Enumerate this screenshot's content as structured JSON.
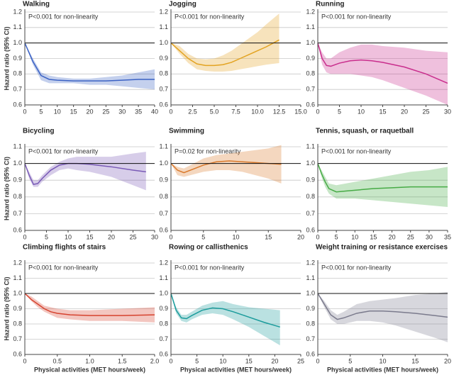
{
  "chart_data": [
    {
      "type": "line",
      "title": "Walking",
      "annotation": "P<0.001 for non-linearity",
      "ylabel": "Hazard ratio (95% CI)",
      "xlim": [
        0,
        40
      ],
      "xticks": [
        0,
        5,
        10,
        15,
        20,
        25,
        30,
        35,
        40
      ],
      "ylim": [
        0.6,
        1.2
      ],
      "yticks": [
        0.6,
        0.7,
        0.8,
        0.9,
        {
          "value": 1,
          "label": "1.0"
        },
        1.1,
        1.2
      ],
      "grid": true,
      "reference": 1,
      "series": [
        {
          "color": "#3b62c4",
          "x": [
            0,
            2.5,
            5,
            7.5,
            10,
            15,
            20,
            25,
            30,
            35,
            40
          ],
          "values": [
            1,
            0.88,
            0.79,
            0.765,
            0.76,
            0.755,
            0.755,
            0.755,
            0.76,
            0.765,
            0.765
          ],
          "lower": [
            1,
            0.86,
            0.76,
            0.74,
            0.74,
            0.74,
            0.73,
            0.73,
            0.72,
            0.71,
            0.7
          ],
          "upper": [
            1,
            0.9,
            0.81,
            0.79,
            0.78,
            0.77,
            0.77,
            0.78,
            0.79,
            0.81,
            0.83
          ]
        }
      ]
    },
    {
      "type": "line",
      "title": "Jogging",
      "annotation": "P<0.001 for non-linearity",
      "xlim": [
        0,
        15
      ],
      "xticks": [
        0,
        2.5,
        {
          "value": 5,
          "label": "5.0"
        },
        7.5,
        {
          "value": 10,
          "label": "10.0"
        },
        12.5,
        {
          "value": 15,
          "label": "15.0"
        }
      ],
      "ylim": [
        0.6,
        1.2
      ],
      "yticks": [
        0.6,
        0.7,
        0.8,
        0.9,
        {
          "value": 1,
          "label": "1.0"
        },
        1.1,
        1.2
      ],
      "grid": true,
      "reference": 1,
      "series": [
        {
          "color": "#e3a321",
          "x": [
            0,
            1,
            2,
            3,
            4,
            5,
            6,
            7,
            8,
            9,
            10,
            11,
            12.5
          ],
          "values": [
            1,
            0.95,
            0.9,
            0.865,
            0.855,
            0.855,
            0.86,
            0.875,
            0.9,
            0.925,
            0.95,
            0.975,
            1.02
          ],
          "lower": [
            1,
            0.93,
            0.87,
            0.83,
            0.82,
            0.815,
            0.815,
            0.82,
            0.83,
            0.84,
            0.85,
            0.86,
            0.87
          ],
          "upper": [
            1,
            0.98,
            0.93,
            0.9,
            0.895,
            0.9,
            0.92,
            0.95,
            0.99,
            1.03,
            1.07,
            1.12,
            1.19
          ]
        }
      ]
    },
    {
      "type": "line",
      "title": "Running",
      "annotation": "P<0.001 for non-linearity",
      "xlim": [
        0,
        30
      ],
      "xticks": [
        0,
        5,
        10,
        15,
        20,
        25,
        30
      ],
      "ylim": [
        0.6,
        1.2
      ],
      "yticks": [
        0.6,
        0.7,
        0.8,
        0.9,
        {
          "value": 1,
          "label": "1.0"
        },
        1.1,
        1.2
      ],
      "grid": true,
      "reference": 1,
      "series": [
        {
          "color": "#c92e8d",
          "x": [
            0,
            1,
            2,
            3,
            5,
            7.5,
            10,
            12.5,
            15,
            20,
            25,
            30
          ],
          "values": [
            1,
            0.9,
            0.855,
            0.85,
            0.87,
            0.885,
            0.89,
            0.885,
            0.875,
            0.845,
            0.8,
            0.74
          ],
          "lower": [
            1,
            0.86,
            0.81,
            0.8,
            0.8,
            0.8,
            0.79,
            0.78,
            0.76,
            0.71,
            0.66,
            0.6
          ],
          "upper": [
            1,
            0.94,
            0.9,
            0.9,
            0.94,
            0.97,
            0.99,
            0.99,
            0.98,
            0.97,
            0.95,
            0.94
          ]
        }
      ]
    },
    {
      "type": "line",
      "title": "Bicycling",
      "annotation": "P<0.001 for non-linearity",
      "ylabel": "Hazard ratio (95% CI)",
      "xlim": [
        0,
        30
      ],
      "xticks": [
        0,
        5,
        10,
        15,
        20,
        25,
        30
      ],
      "ylim": [
        0.6,
        1.1
      ],
      "yticks": [
        0.6,
        0.7,
        0.8,
        0.9,
        {
          "value": 1,
          "label": "1.0"
        },
        1.1
      ],
      "grid": true,
      "reference": 1,
      "series": [
        {
          "color": "#7a5bb7",
          "x": [
            0,
            1,
            2,
            3,
            4,
            6,
            8,
            10,
            12,
            15,
            20,
            25,
            28
          ],
          "values": [
            1,
            0.93,
            0.875,
            0.88,
            0.91,
            0.96,
            0.99,
            1,
            1,
            0.995,
            0.98,
            0.96,
            0.95
          ],
          "lower": [
            1,
            0.91,
            0.86,
            0.86,
            0.89,
            0.93,
            0.96,
            0.97,
            0.96,
            0.95,
            0.92,
            0.87,
            0.84
          ],
          "upper": [
            1,
            0.95,
            0.9,
            0.9,
            0.93,
            0.98,
            1.01,
            1.03,
            1.04,
            1.04,
            1.04,
            1.06,
            1.07
          ]
        }
      ]
    },
    {
      "type": "line",
      "title": "Swimming",
      "annotation": "P=0.02 for non-linearity",
      "xlim": [
        0,
        20
      ],
      "xticks": [
        0,
        5,
        10,
        15,
        20
      ],
      "ylim": [
        0.6,
        1.1
      ],
      "yticks": [
        0.6,
        0.7,
        0.8,
        0.9,
        {
          "value": 1,
          "label": "1.0"
        },
        1.1
      ],
      "grid": true,
      "reference": 1,
      "series": [
        {
          "color": "#d9792b",
          "x": [
            0,
            1,
            2,
            3,
            5,
            7,
            9,
            11,
            13,
            15,
            17
          ],
          "values": [
            1,
            0.96,
            0.945,
            0.96,
            0.99,
            1.01,
            1.015,
            1.01,
            1.005,
            1,
            0.995
          ],
          "lower": [
            1,
            0.93,
            0.92,
            0.93,
            0.95,
            0.96,
            0.96,
            0.95,
            0.93,
            0.91,
            0.88
          ],
          "upper": [
            1,
            0.98,
            0.97,
            0.99,
            1.03,
            1.05,
            1.06,
            1.07,
            1.08,
            1.09,
            1.11
          ]
        }
      ]
    },
    {
      "type": "line",
      "title": "Tennis, squash, or raquetball",
      "annotation": "P<0.001 for non-linearity",
      "xlim": [
        0,
        35
      ],
      "xticks": [
        0,
        5,
        10,
        15,
        20,
        25,
        30,
        35
      ],
      "ylim": [
        0.6,
        1.1
      ],
      "yticks": [
        0.6,
        0.7,
        0.8,
        0.9,
        {
          "value": 1,
          "label": "1.0"
        },
        1.1
      ],
      "grid": true,
      "reference": 1,
      "series": [
        {
          "color": "#47ab46",
          "x": [
            0,
            1,
            2,
            3,
            5,
            7.5,
            10,
            15,
            20,
            25,
            30,
            35
          ],
          "values": [
            1,
            0.94,
            0.89,
            0.85,
            0.83,
            0.835,
            0.84,
            0.85,
            0.855,
            0.86,
            0.86,
            0.86
          ],
          "lower": [
            1,
            0.92,
            0.86,
            0.82,
            0.79,
            0.79,
            0.79,
            0.78,
            0.77,
            0.76,
            0.75,
            0.74
          ],
          "upper": [
            1,
            0.96,
            0.92,
            0.88,
            0.87,
            0.88,
            0.89,
            0.91,
            0.93,
            0.95,
            0.96,
            0.98
          ]
        }
      ]
    },
    {
      "type": "line",
      "title": "Climbing flights of stairs",
      "annotation": "P<0.001 for non-linearity",
      "ylabel": "Hazard ratio (95% CI)",
      "xlabel": "Physical activities (MET hours/week)",
      "xlim": [
        0,
        2
      ],
      "xticks": [
        0,
        0.5,
        {
          "value": 1,
          "label": "1.0"
        },
        1.5,
        {
          "value": 2,
          "label": "2.0"
        }
      ],
      "ylim": [
        0.6,
        1.2
      ],
      "yticks": [
        0.6,
        0.7,
        0.8,
        0.9,
        {
          "value": 1,
          "label": "1.0"
        },
        1.1,
        1.2
      ],
      "grid": true,
      "reference": 1,
      "series": [
        {
          "color": "#d6432f",
          "x": [
            0,
            0.1,
            0.2,
            0.3,
            0.4,
            0.5,
            0.7,
            1,
            1.5,
            2
          ],
          "values": [
            1,
            0.96,
            0.93,
            0.9,
            0.88,
            0.87,
            0.86,
            0.855,
            0.855,
            0.86
          ],
          "lower": [
            1,
            0.95,
            0.91,
            0.88,
            0.86,
            0.84,
            0.83,
            0.82,
            0.82,
            0.81
          ],
          "upper": [
            1,
            0.98,
            0.95,
            0.92,
            0.91,
            0.9,
            0.89,
            0.89,
            0.9,
            0.91
          ]
        }
      ]
    },
    {
      "type": "line",
      "title": "Rowing or callisthenics",
      "annotation": "P<0.001 for non-linearity",
      "xlabel": "Physical activities (MET hours/week)",
      "xlim": [
        0,
        25
      ],
      "xticks": [
        0,
        5,
        10,
        15,
        20,
        25
      ],
      "ylim": [
        0.6,
        1.2
      ],
      "yticks": [
        0.6,
        0.7,
        0.8,
        0.9,
        {
          "value": 1,
          "label": "1.0"
        },
        1.1,
        1.2
      ],
      "grid": true,
      "reference": 1,
      "series": [
        {
          "color": "#1b9c9c",
          "x": [
            0,
            1,
            2,
            3,
            4,
            6,
            8,
            10,
            12,
            15,
            18,
            21
          ],
          "values": [
            1,
            0.89,
            0.84,
            0.835,
            0.855,
            0.89,
            0.905,
            0.9,
            0.88,
            0.845,
            0.81,
            0.78
          ],
          "lower": [
            1,
            0.87,
            0.82,
            0.81,
            0.83,
            0.86,
            0.87,
            0.86,
            0.83,
            0.78,
            0.72,
            0.66
          ],
          "upper": [
            1,
            0.91,
            0.86,
            0.86,
            0.88,
            0.92,
            0.94,
            0.95,
            0.93,
            0.91,
            0.9,
            0.89
          ]
        }
      ]
    },
    {
      "type": "line",
      "title": "Weight training or resistance exercises",
      "annotation": "P<0.001 for non-linearity",
      "xlabel": "Physical activities (MET hours/week)",
      "xlim": [
        0,
        20
      ],
      "xticks": [
        0,
        5,
        10,
        15,
        20
      ],
      "ylim": [
        0.6,
        1.2
      ],
      "yticks": [
        0.6,
        0.7,
        0.8,
        0.9,
        {
          "value": 1,
          "label": "1.0"
        },
        1.1,
        1.2
      ],
      "grid": true,
      "reference": 1,
      "series": [
        {
          "color": "#7b7b8d",
          "x": [
            0,
            1,
            2,
            3,
            4,
            6,
            8,
            10,
            12,
            15,
            18,
            20
          ],
          "values": [
            1,
            0.93,
            0.86,
            0.83,
            0.84,
            0.87,
            0.885,
            0.885,
            0.88,
            0.87,
            0.855,
            0.845
          ],
          "lower": [
            1,
            0.91,
            0.83,
            0.8,
            0.8,
            0.82,
            0.82,
            0.81,
            0.79,
            0.75,
            0.71,
            0.68
          ],
          "upper": [
            1,
            0.95,
            0.89,
            0.86,
            0.88,
            0.93,
            0.95,
            0.96,
            0.97,
            0.99,
            1,
            1.01
          ]
        }
      ]
    }
  ]
}
